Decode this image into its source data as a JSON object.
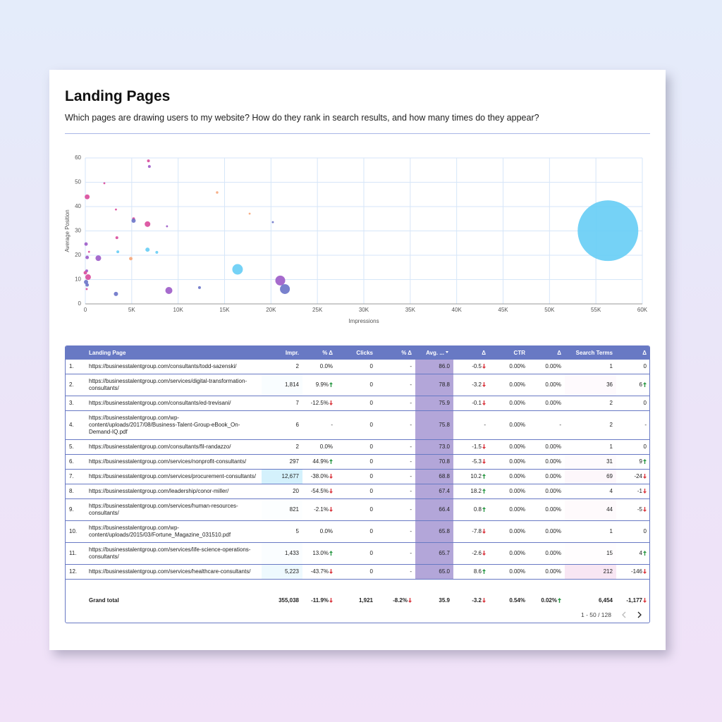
{
  "header": {
    "title": "Landing Pages",
    "subtitle": "Which pages are drawing users to my website? How do they rank in search results, and how many times  do they appear?"
  },
  "chart_data": {
    "type": "scatter",
    "x_label": "Impressions",
    "y_label": "Average Position",
    "x": [
      6800,
      6900,
      2050,
      200,
      14200,
      3300,
      5200,
      5200,
      17700,
      20200,
      6700,
      8800,
      3400,
      80,
      6700,
      3500,
      7700,
      400,
      200,
      1400,
      4900,
      16400,
      150,
      0,
      300,
      21000,
      21500,
      80,
      200,
      12300,
      9000,
      3300,
      150,
      56300
    ],
    "values": [
      58.8,
      56.5,
      49.6,
      44,
      45.8,
      38.8,
      35,
      34.2,
      37.1,
      33.6,
      32.8,
      31.9,
      27.2,
      24.6,
      22.3,
      21.4,
      21.2,
      21.4,
      19.1,
      18.8,
      18.6,
      14.2,
      13.6,
      12.8,
      11,
      9.6,
      6.1,
      9,
      7.8,
      6.7,
      5.5,
      4.1,
      6.1,
      30.1
    ],
    "sizes": [
      4,
      4,
      2,
      12,
      3,
      2,
      4,
      9,
      2,
      2,
      16,
      2,
      4,
      6,
      9,
      4,
      4,
      2,
      6,
      16,
      6,
      56,
      4,
      6,
      16,
      49,
      49,
      9,
      6,
      4,
      25,
      9,
      2,
      1849
    ],
    "colors": [
      "#d94a9b",
      "#9c5bc8",
      "#d94a9b",
      "#d94a9b",
      "#f6a67a",
      "#d94a9b",
      "#d94a9b",
      "#6a73c8",
      "#f6a67a",
      "#6a73c8",
      "#d94a9b",
      "#9c5bc8",
      "#d94a9b",
      "#9c5bc8",
      "#66cdf5",
      "#66cdf5",
      "#66cdf5",
      "#d94a9b",
      "#9c5bc8",
      "#9c5bc8",
      "#f6a67a",
      "#66cdf5",
      "#9c5bc8",
      "#d94a9b",
      "#d94a9b",
      "#9c5bc8",
      "#6a73c8",
      "#6a73c8",
      "#6a73c8",
      "#6a73c8",
      "#9c5bc8",
      "#6a73c8",
      "#d94a9b",
      "#66cdf5"
    ],
    "xlim": [
      0,
      60000
    ],
    "ylim": [
      0,
      60
    ],
    "xticks": [
      0,
      {
        "value": 5000,
        "label": "5K"
      },
      {
        "value": 10000,
        "label": "10K"
      },
      {
        "value": 15000,
        "label": "15K"
      },
      {
        "value": 20000,
        "label": "20K"
      },
      {
        "value": 25000,
        "label": "25K"
      },
      {
        "value": 30000,
        "label": "30K"
      },
      {
        "value": 35000,
        "label": "35K"
      },
      {
        "value": 40000,
        "label": "40K"
      },
      {
        "value": 45000,
        "label": "45K"
      },
      {
        "value": 50000,
        "label": "50K"
      },
      {
        "value": 55000,
        "label": "55K"
      },
      {
        "value": 60000,
        "label": "60K"
      }
    ],
    "yticks": [
      0,
      10,
      20,
      30,
      40,
      50,
      60
    ],
    "grid": true
  },
  "table": {
    "headers": [
      "Landing Page",
      "Impr.",
      "% Δ",
      "Clicks",
      "% Δ",
      "Avg. ...",
      "Δ",
      "CTR",
      "Δ",
      "Search Terms",
      "Δ"
    ],
    "rows": [
      [
        "1.",
        "https://businesstalentgroup.com/consultants/todd-sazenski/",
        "2",
        "0.0%",
        "0",
        "-",
        "86.0",
        "-0.5",
        "0.00%",
        "0.00%",
        "1",
        "0"
      ],
      [
        "2.",
        "https://businesstalentgroup.com/services/digital-transformation-consultants/",
        "1,814",
        "9.9%",
        "0",
        "-",
        "78.8",
        "-3.2",
        "0.00%",
        "0.00%",
        "36",
        "6"
      ],
      [
        "3.",
        "https://businesstalentgroup.com/consultants/ed-trevisani/",
        "7",
        "-12.5%",
        "0",
        "-",
        "75.9",
        "-0.1",
        "0.00%",
        "0.00%",
        "2",
        "0"
      ],
      [
        "4.",
        "https://businesstalentgroup.com/wp-content/uploads/2017/08/Business-Talent-Group-eBook_On-Demand-IQ.pdf",
        "6",
        "-",
        "0",
        "-",
        "75.8",
        "-",
        "0.00%",
        "-",
        "2",
        "-"
      ],
      [
        "5.",
        "https://businesstalentgroup.com/consultants/fil-randazzo/",
        "2",
        "0.0%",
        "0",
        "-",
        "73.0",
        "-1.5",
        "0.00%",
        "0.00%",
        "1",
        "0"
      ],
      [
        "6.",
        "https://businesstalentgroup.com/services/nonprofit-consultants/",
        "297",
        "44.9%",
        "0",
        "-",
        "70.8",
        "-5.3",
        "0.00%",
        "0.00%",
        "31",
        "9"
      ],
      [
        "7.",
        "https://businesstalentgroup.com/services/procurement-consultants/",
        "12,677",
        "-38.0%",
        "0",
        "-",
        "68.8",
        "10.2",
        "0.00%",
        "0.00%",
        "69",
        "-24"
      ],
      [
        "8.",
        "https://businesstalentgroup.com/leadership/conor-miller/",
        "20",
        "-54.5%",
        "0",
        "-",
        "67.4",
        "18.2",
        "0.00%",
        "0.00%",
        "4",
        "-1"
      ],
      [
        "9.",
        "https://businesstalentgroup.com/services/human-resources-consultants/",
        "821",
        "-2.1%",
        "0",
        "-",
        "66.4",
        "0.8",
        "0.00%",
        "0.00%",
        "44",
        "-5"
      ],
      [
        "10.",
        "https://businesstalentgroup.com/wp-content/uploads/2015/03/Fortune_Magazine_031510.pdf",
        "5",
        "0.0%",
        "0",
        "-",
        "65.8",
        "-7.8",
        "0.00%",
        "0.00%",
        "1",
        "0"
      ],
      [
        "11.",
        "https://businesstalentgroup.com/services/life-science-operations-consultants/",
        "1,433",
        "13.0%",
        "0",
        "-",
        "65.7",
        "-2.6",
        "0.00%",
        "0.00%",
        "15",
        "4"
      ],
      [
        "12.",
        "https://businesstalentgroup.com/services/healthcare-consultants/",
        "5,223",
        "-43.7%",
        "0",
        "-",
        "65.0",
        "8.6",
        "0.00%",
        "0.00%",
        "212",
        "-146"
      ]
    ],
    "total": [
      "Grand total",
      "355,038",
      "-11.9%",
      "1,921",
      "-8.2%",
      "35.9",
      "-3.2",
      "0.54%",
      "0.02%",
      "6,454",
      "-1,177"
    ],
    "pagination": "1 - 50 / 128"
  }
}
